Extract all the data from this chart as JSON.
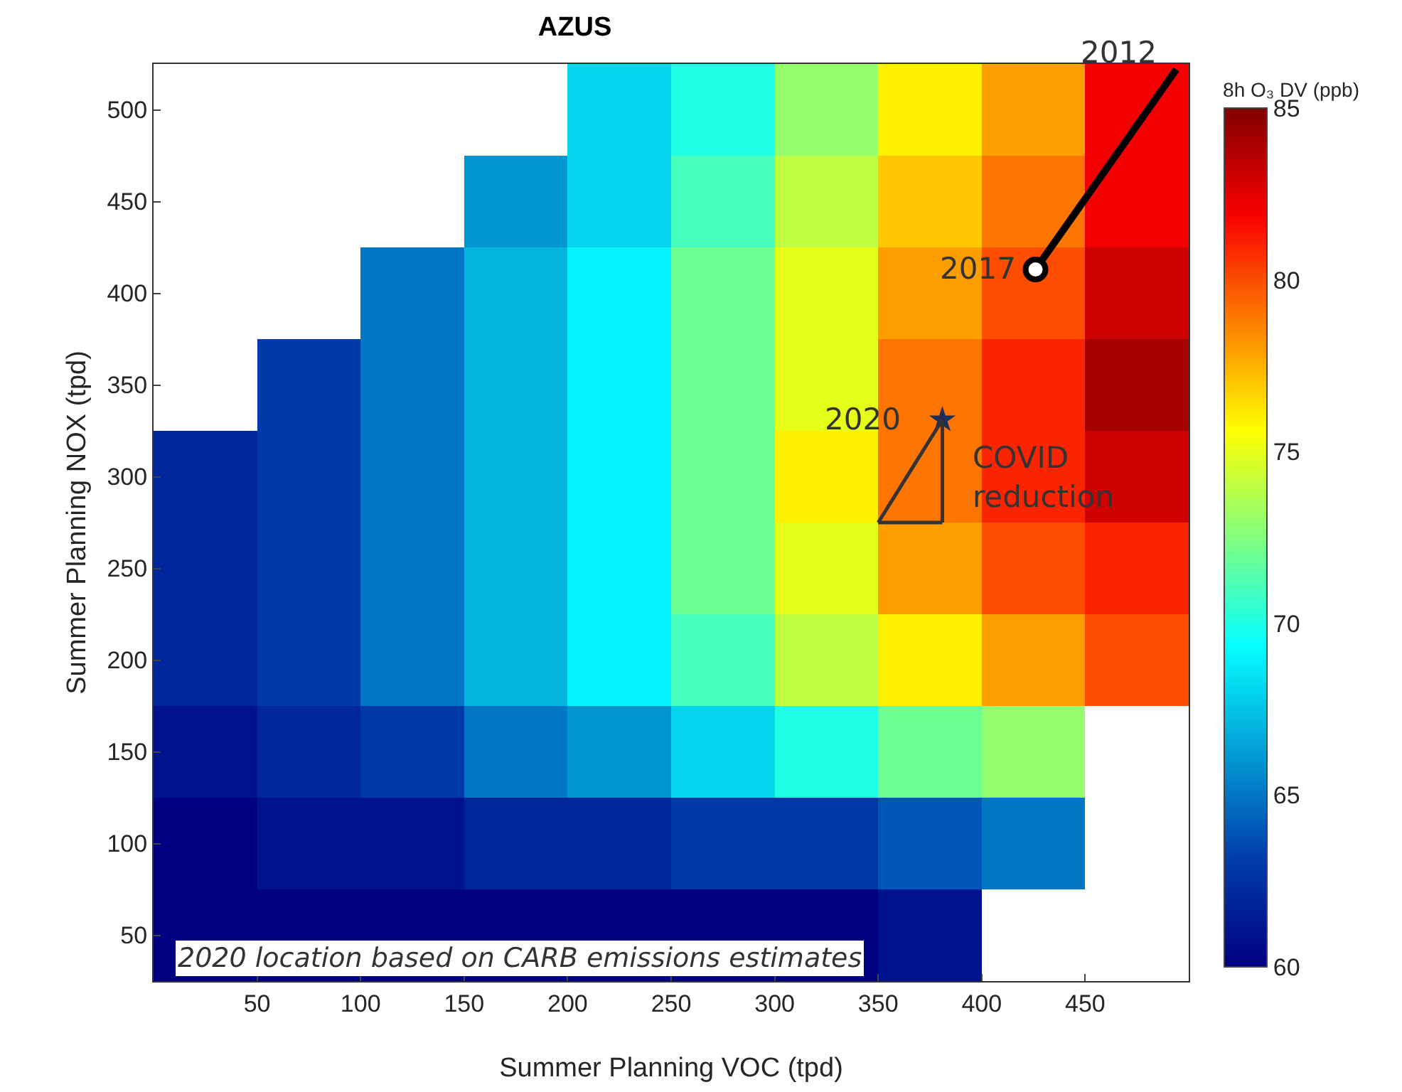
{
  "chart_data": {
    "type": "heatmap",
    "title": "AZUS",
    "xlabel": "Summer Planning VOC (tpd)",
    "ylabel": "Summer Planning NOX (tpd)",
    "clabel": "8h O₃ DV (ppb)",
    "cells": [
      [
        null,
        null,
        null,
        null,
        68,
        70,
        73,
        76,
        78,
        82
      ],
      [
        null,
        null,
        null,
        66,
        68,
        71,
        74,
        77,
        79,
        82
      ],
      [
        null,
        null,
        65,
        67,
        69,
        72,
        75,
        78,
        80,
        83
      ],
      [
        null,
        63,
        65,
        67,
        69,
        72,
        75,
        79,
        81,
        84
      ],
      [
        62,
        63,
        65,
        67,
        69,
        72,
        76,
        79,
        81,
        83
      ],
      [
        62,
        63,
        65,
        67,
        69,
        72,
        75,
        78,
        80,
        81
      ],
      [
        62,
        63,
        65,
        67,
        69,
        71,
        74,
        76,
        78,
        80
      ],
      [
        61,
        62,
        63,
        65,
        66,
        68,
        70,
        72,
        73,
        null
      ],
      [
        60,
        61,
        61,
        62,
        62,
        63,
        63,
        64,
        65,
        null
      ],
      [
        60,
        60,
        60,
        60,
        60,
        60,
        60,
        61,
        null,
        null
      ]
    ],
    "clim": [
      60,
      85
    ],
    "cticks": [
      60,
      65,
      70,
      75,
      80,
      85
    ],
    "xlim": [
      0,
      500
    ],
    "xticks": [
      50,
      100,
      150,
      200,
      250,
      300,
      350,
      400,
      450
    ],
    "ylim": [
      25,
      525
    ],
    "yticks": [
      50,
      100,
      150,
      200,
      250,
      300,
      350,
      400,
      450,
      500
    ],
    "series": [
      {
        "type": "line",
        "x": [
          494,
          426
        ],
        "values": [
          522,
          413
        ],
        "color": "#000000",
        "marker": "none"
      },
      {
        "type": "scatter",
        "x": [
          426
        ],
        "values": [
          413
        ],
        "color": "#000000",
        "marker": "circle"
      },
      {
        "type": "scatter",
        "x": [
          381
        ],
        "values": [
          331
        ],
        "color": "#1f2d5a",
        "marker": "star"
      },
      {
        "type": "line",
        "x": [
          381,
          350
        ],
        "values": [
          331,
          275
        ],
        "color": "#333333",
        "marker": "none"
      },
      {
        "type": "line",
        "x": [
          350,
          381
        ],
        "values": [
          275,
          275
        ],
        "color": "#333333",
        "marker": "none"
      },
      {
        "type": "line",
        "x": [
          381,
          381
        ],
        "values": [
          331,
          275
        ],
        "color": "#333333",
        "marker": "none"
      }
    ],
    "annotations": [
      {
        "text": "2012",
        "x": 494,
        "y": 522
      },
      {
        "text": "2017",
        "x": 426,
        "y": 413
      },
      {
        "text": "2020",
        "x": 381,
        "y": 331
      },
      "COVID reduction",
      "2020 location based on CARB emissions estimates"
    ],
    "grid": false
  }
}
